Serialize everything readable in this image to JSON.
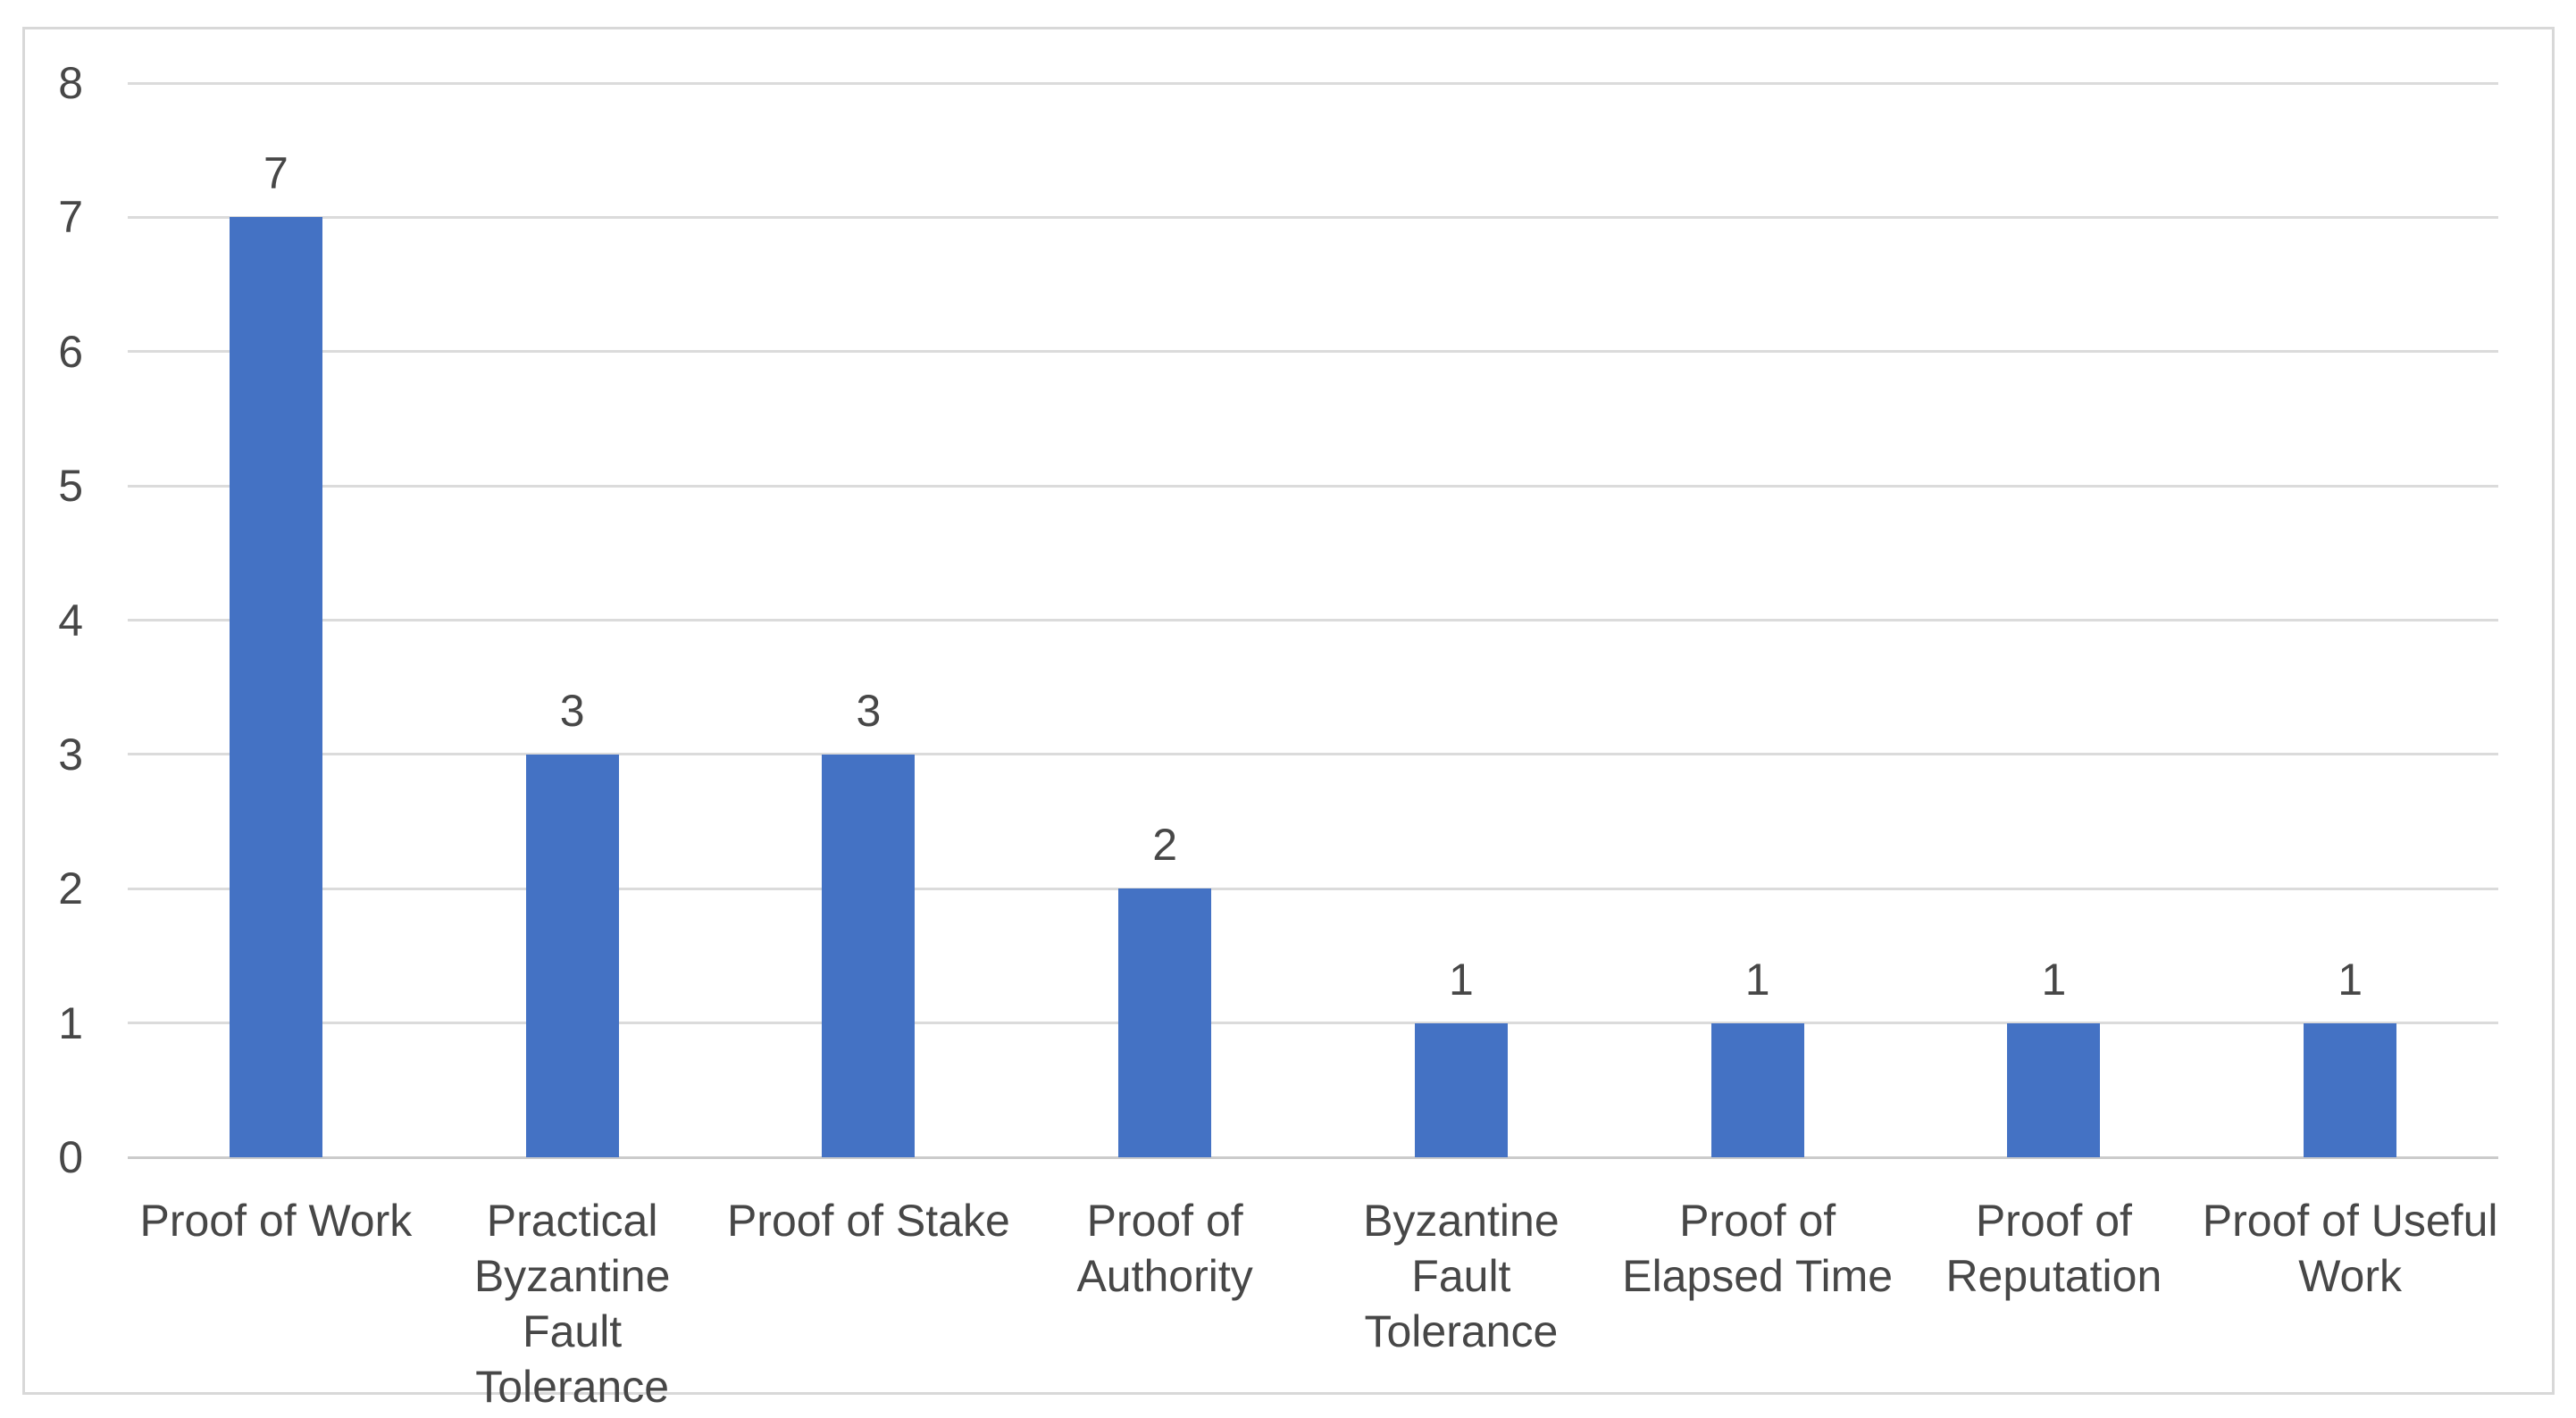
{
  "chart_data": {
    "type": "bar",
    "title": "",
    "xlabel": "",
    "ylabel": "",
    "categories": [
      "Proof of Work",
      "Practical Byzantine Fault Tolerance",
      "Proof of Stake",
      "Proof of Authority",
      "Byzantine Fault Tolerance",
      "Proof of Elapsed Time",
      "Proof of Reputation",
      "Proof of Useful Work"
    ],
    "x_tick_lines": [
      [
        "Proof of Work"
      ],
      [
        "Practical",
        "Byzantine Fault",
        "Tolerance"
      ],
      [
        "Proof of Stake"
      ],
      [
        "Proof of",
        "Authority"
      ],
      [
        "Byzantine Fault",
        "Tolerance"
      ],
      [
        "Proof of",
        "Elapsed Time"
      ],
      [
        "Proof of",
        "Reputation"
      ],
      [
        "Proof of Useful",
        "Work"
      ]
    ],
    "values": [
      7,
      3,
      3,
      2,
      1,
      1,
      1,
      1
    ],
    "data_labels": [
      "7",
      "3",
      "3",
      "2",
      "1",
      "1",
      "1",
      "1"
    ],
    "y_ticks": [
      "0",
      "1",
      "2",
      "3",
      "4",
      "5",
      "6",
      "7",
      "8"
    ],
    "ylim": [
      0,
      8
    ],
    "grid": true,
    "legend_position": "none",
    "colors": {
      "bar": "#4472C4",
      "gridline": "#DBDBDB",
      "axis_line": "#CBCBCB",
      "text": "#474747",
      "frame_border": "#D8D8D8",
      "background": "#FFFFFF"
    }
  }
}
